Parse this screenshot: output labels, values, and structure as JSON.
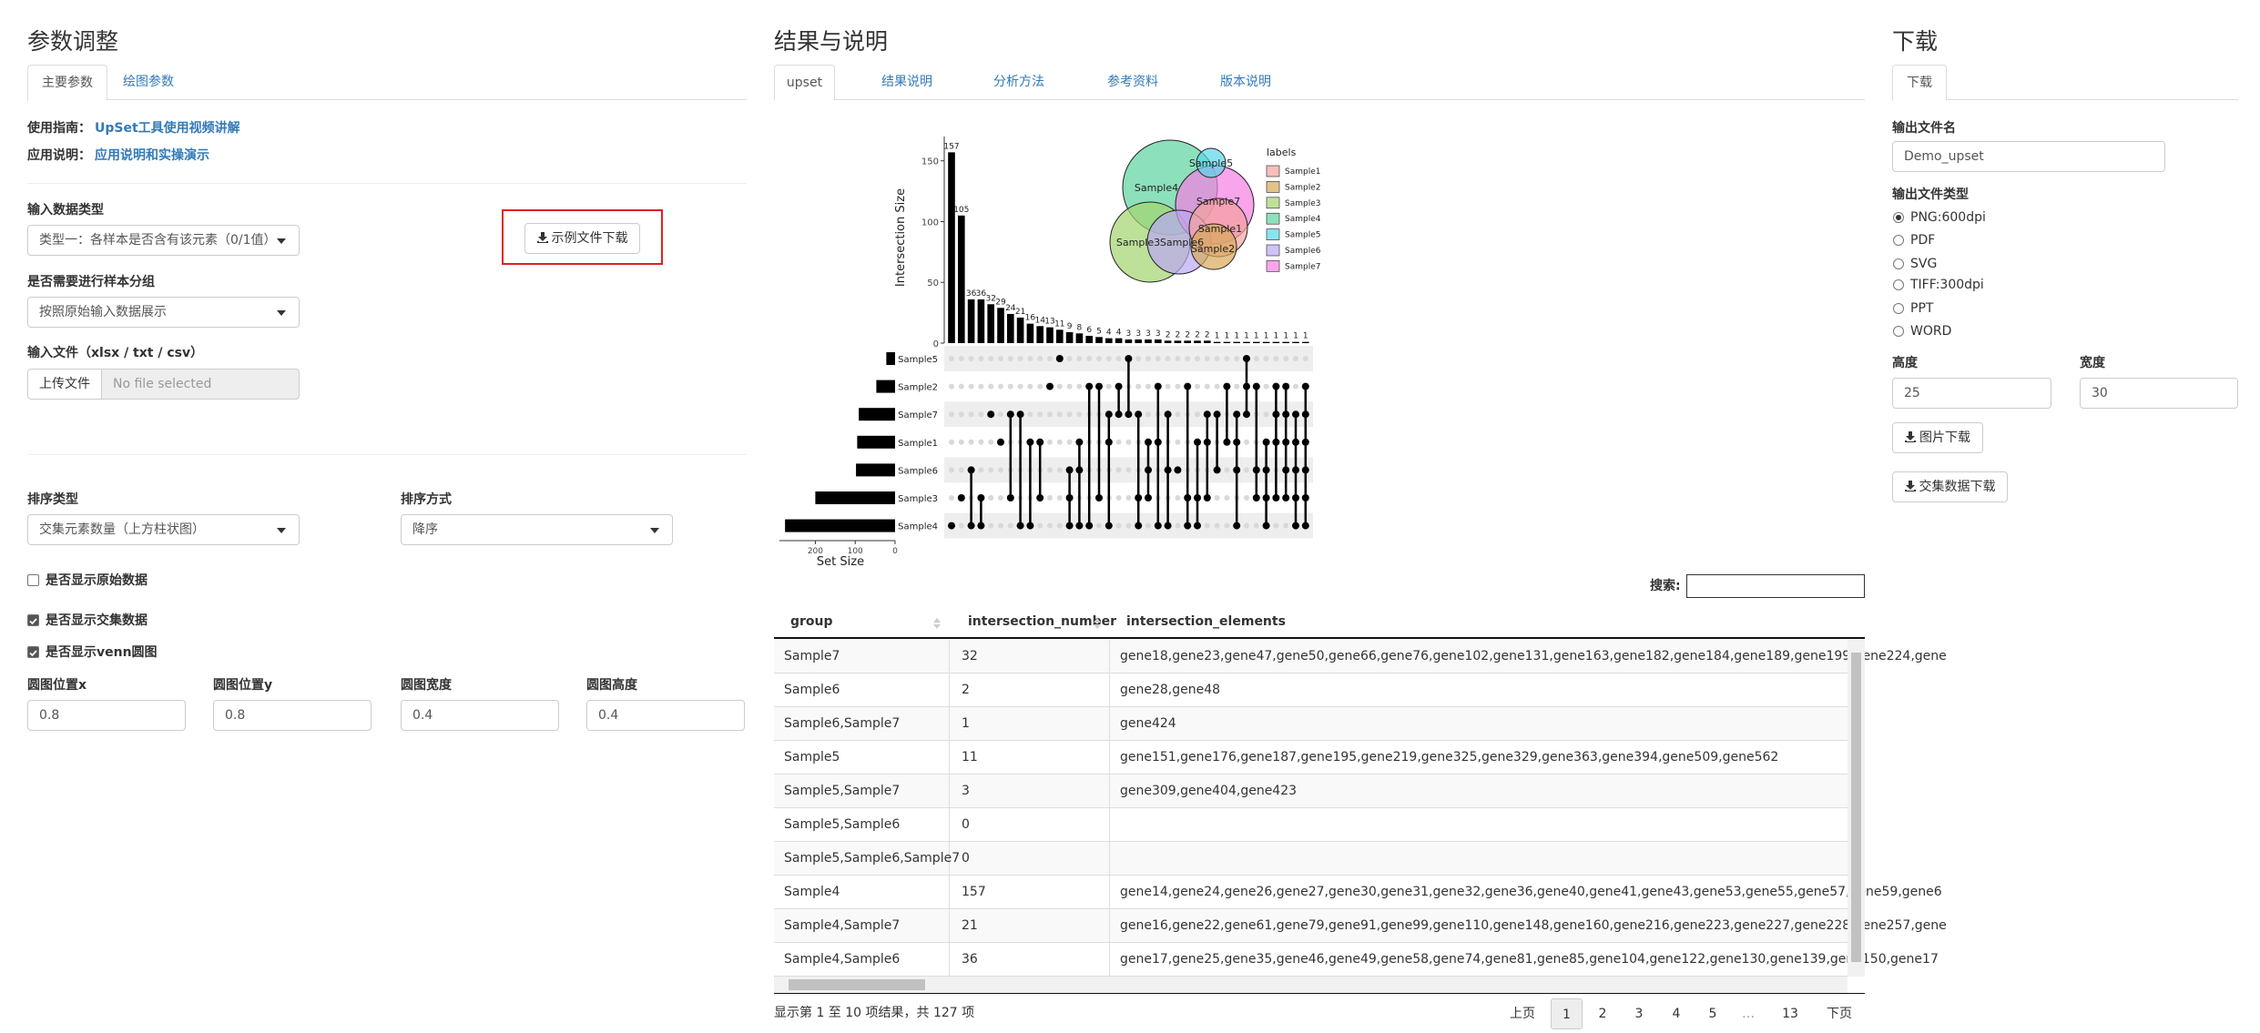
{
  "left": {
    "title": "参数调整",
    "tabs": [
      "主要参数",
      "绘图参数"
    ],
    "guide_label": "使用指南：",
    "guide_link": "UpSet工具使用视频讲解",
    "app_label": "应用说明：",
    "app_link": "应用说明和实操演示",
    "input_type_label": "输入数据类型",
    "input_type_value": "类型一：各样本是否含有该元素（0/1值）",
    "example_button": "示例文件下载",
    "group_label": "是否需要进行样本分组",
    "group_value": "按照原始输入数据展示",
    "file_label": "输入文件（xlsx / txt / csv）",
    "upload_button": "上传文件",
    "file_placeholder": "No file selected",
    "sort_type_label": "排序类型",
    "sort_type_value": "交集元素数量（上方柱状图）",
    "sort_order_label": "排序方式",
    "sort_order_value": "降序",
    "checkboxes": [
      {
        "label": "是否显示原始数据",
        "checked": false
      },
      {
        "label": "是否显示交集数据",
        "checked": true
      },
      {
        "label": "是否显示venn圆图",
        "checked": true
      }
    ],
    "venn_inputs": [
      {
        "label": "圆图位置x",
        "value": 0.8
      },
      {
        "label": "圆图位置y",
        "value": 0.8
      },
      {
        "label": "圆图宽度",
        "value": 0.4
      },
      {
        "label": "圆图高度",
        "value": 0.4
      }
    ]
  },
  "middle": {
    "title": "结果与说明",
    "tabs": [
      "upset",
      "结果说明",
      "分析方法",
      "参考资料",
      "版本说明"
    ],
    "search_label": "搜索:",
    "info": "显示第 1 至 10 项结果，共 127 项",
    "pagination": [
      "上页",
      1,
      2,
      3,
      4,
      5,
      "…",
      13,
      "下页"
    ]
  },
  "chart_data": {
    "type": "upset",
    "y_label": "Intersection Size",
    "x_label": "Set Size",
    "bar_color": "#000000",
    "sets": [
      "Sample5",
      "Sample2",
      "Sample7",
      "Sample1",
      "Sample6",
      "Sample3",
      "Sample4"
    ],
    "set_sizes": [
      22,
      47,
      91,
      95,
      98,
      200,
      276
    ],
    "values": [
      157,
      105,
      36,
      36,
      32,
      29,
      24,
      21,
      16,
      14,
      13,
      11,
      9,
      8,
      6,
      5,
      4,
      4,
      3,
      3,
      3,
      3,
      2,
      2,
      2,
      2,
      2,
      1,
      1,
      1,
      1,
      1,
      1,
      1,
      1,
      1,
      1
    ],
    "members": [
      [
        6
      ],
      [
        5
      ],
      [
        4,
        6
      ],
      [
        5,
        6
      ],
      [
        2
      ],
      [
        3
      ],
      [
        2,
        5
      ],
      [
        2,
        6
      ],
      [
        3,
        6
      ],
      [
        3,
        5
      ],
      [
        1
      ],
      [
        0
      ],
      [
        4,
        5,
        6
      ],
      [
        3,
        4,
        6
      ],
      [
        1,
        6
      ],
      [
        1,
        5
      ],
      [
        2,
        3,
        6
      ],
      [
        1,
        2
      ],
      [
        0,
        2
      ],
      [
        2,
        5,
        6
      ],
      [
        3,
        4,
        5
      ],
      [
        1,
        3,
        6
      ],
      [
        2,
        4,
        6
      ],
      [
        4
      ],
      [
        1,
        5,
        6
      ],
      [
        3,
        5,
        6
      ],
      [
        2,
        3,
        5
      ],
      [
        2,
        4
      ],
      [
        1,
        3
      ],
      [
        2,
        3,
        4,
        6
      ],
      [
        0,
        1,
        2
      ],
      [
        1,
        4,
        5
      ],
      [
        3,
        4,
        5,
        6
      ],
      [
        1,
        2,
        3,
        5
      ],
      [
        1,
        2,
        3,
        4,
        5
      ],
      [
        2,
        3,
        4,
        5,
        6
      ],
      [
        1,
        2,
        3,
        4,
        5,
        6
      ]
    ],
    "ylim": [
      0,
      170
    ],
    "yticks": [
      0,
      50,
      100,
      150
    ],
    "xlim": [
      290,
      0
    ],
    "xticks": [
      200,
      100,
      0
    ],
    "venn": {
      "legend_title": "labels",
      "labels": [
        "Sample1",
        "Sample2",
        "Sample3",
        "Sample4",
        "Sample5",
        "Sample6",
        "Sample7"
      ],
      "colors": [
        "#f4a29c",
        "#d9a85a",
        "#a3d46e",
        "#5cd3a0",
        "#5ad6e8",
        "#bba8f2",
        "#f57fe2"
      ]
    }
  },
  "table": {
    "columns": [
      "group",
      "intersection_number",
      "intersection_elements"
    ],
    "rows": [
      [
        "Sample7",
        32,
        "gene18,gene23,gene47,gene50,gene66,gene76,gene102,gene131,gene163,gene182,gene184,gene189,gene199,gene224,gene"
      ],
      [
        "Sample6",
        2,
        "gene28,gene48"
      ],
      [
        "Sample6,Sample7",
        1,
        "gene424"
      ],
      [
        "Sample5",
        11,
        "gene151,gene176,gene187,gene195,gene219,gene325,gene329,gene363,gene394,gene509,gene562"
      ],
      [
        "Sample5,Sample7",
        3,
        "gene309,gene404,gene423"
      ],
      [
        "Sample5,Sample6",
        0,
        null
      ],
      [
        "Sample5,Sample6,Sample7",
        0,
        null
      ],
      [
        "Sample4",
        157,
        "gene14,gene24,gene26,gene27,gene30,gene31,gene32,gene36,gene40,gene41,gene43,gene53,gene55,gene57,gene59,gene6"
      ],
      [
        "Sample4,Sample7",
        21,
        "gene16,gene22,gene61,gene79,gene91,gene99,gene110,gene148,gene160,gene216,gene223,gene227,gene228,gene257,gene"
      ],
      [
        "Sample4,Sample6",
        36,
        "gene17,gene25,gene35,gene46,gene49,gene58,gene74,gene81,gene85,gene104,gene122,gene130,gene139,gene150,gene17"
      ]
    ]
  },
  "right": {
    "title": "下载",
    "tab": "下载",
    "filename_label": "输出文件名",
    "filename_value": "Demo_upset",
    "filetype_label": "输出文件类型",
    "filetypes": [
      "PNG:600dpi",
      "PDF",
      "SVG",
      "TIFF:300dpi",
      "PPT",
      "WORD"
    ],
    "selected_filetype": 0,
    "height_label": "高度",
    "height_value": 25,
    "width_label": "宽度",
    "width_value": 30,
    "image_button": "图片下载",
    "data_button": "交集数据下载"
  }
}
